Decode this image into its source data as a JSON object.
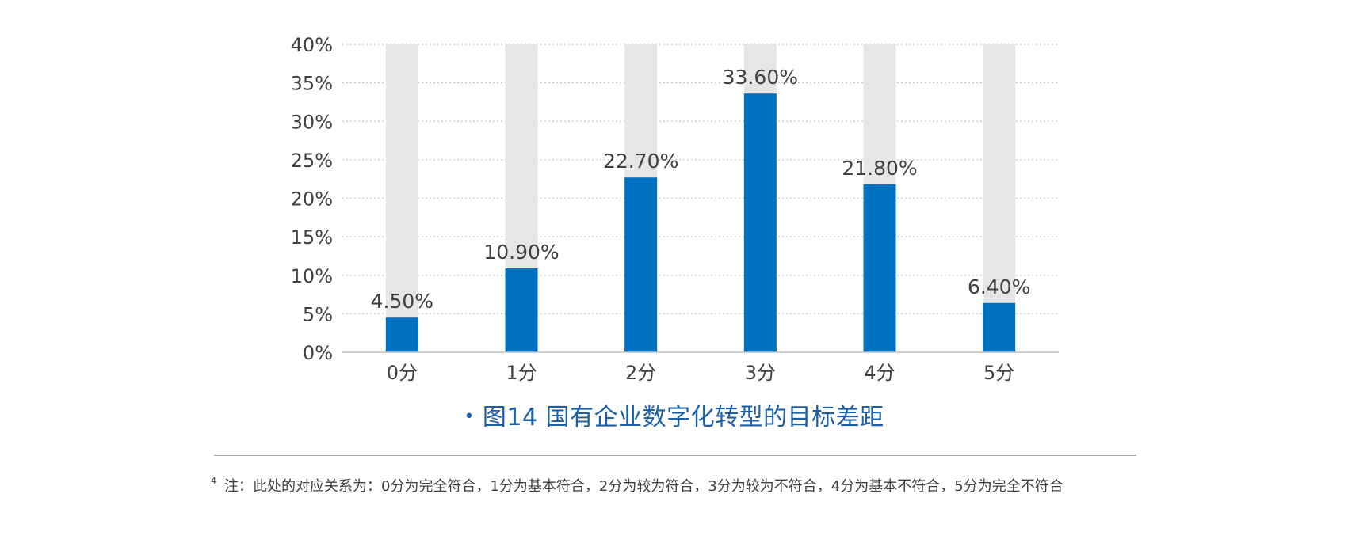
{
  "chart_data": {
    "type": "bar",
    "categories": [
      "0分",
      "1分",
      "2分",
      "3分",
      "4分",
      "5分"
    ],
    "series": [
      {
        "values": [
          4.5,
          10.9,
          22.7,
          33.6,
          21.8,
          6.4
        ],
        "color": "#0070c0"
      }
    ],
    "background_values": [
      40,
      40,
      40,
      40,
      40,
      40
    ],
    "background_color": "#e6e6e8",
    "data_labels": [
      "4.50%",
      "10.90%",
      "22.70%",
      "33.60%",
      "21.80%",
      "6.40%"
    ],
    "yticks": [
      0,
      5,
      10,
      15,
      20,
      25,
      30,
      35,
      40
    ],
    "ytick_labels": [
      "0%",
      "5%",
      "10%",
      "15%",
      "20%",
      "25%",
      "30%",
      "35%",
      "40%"
    ],
    "ylim": [
      0,
      40
    ],
    "grid": true,
    "title": "",
    "xlabel": "",
    "ylabel": ""
  },
  "caption": {
    "bullet": "•",
    "text": "图14  国有企业数字化转型的目标差距"
  },
  "footnote": {
    "marker": "4",
    "text": "注：此处的对应关系为：0分为完全符合，1分为基本符合，2分为较为符合，3分为较为不符合，4分为基本不符合，5分为完全不符合"
  }
}
